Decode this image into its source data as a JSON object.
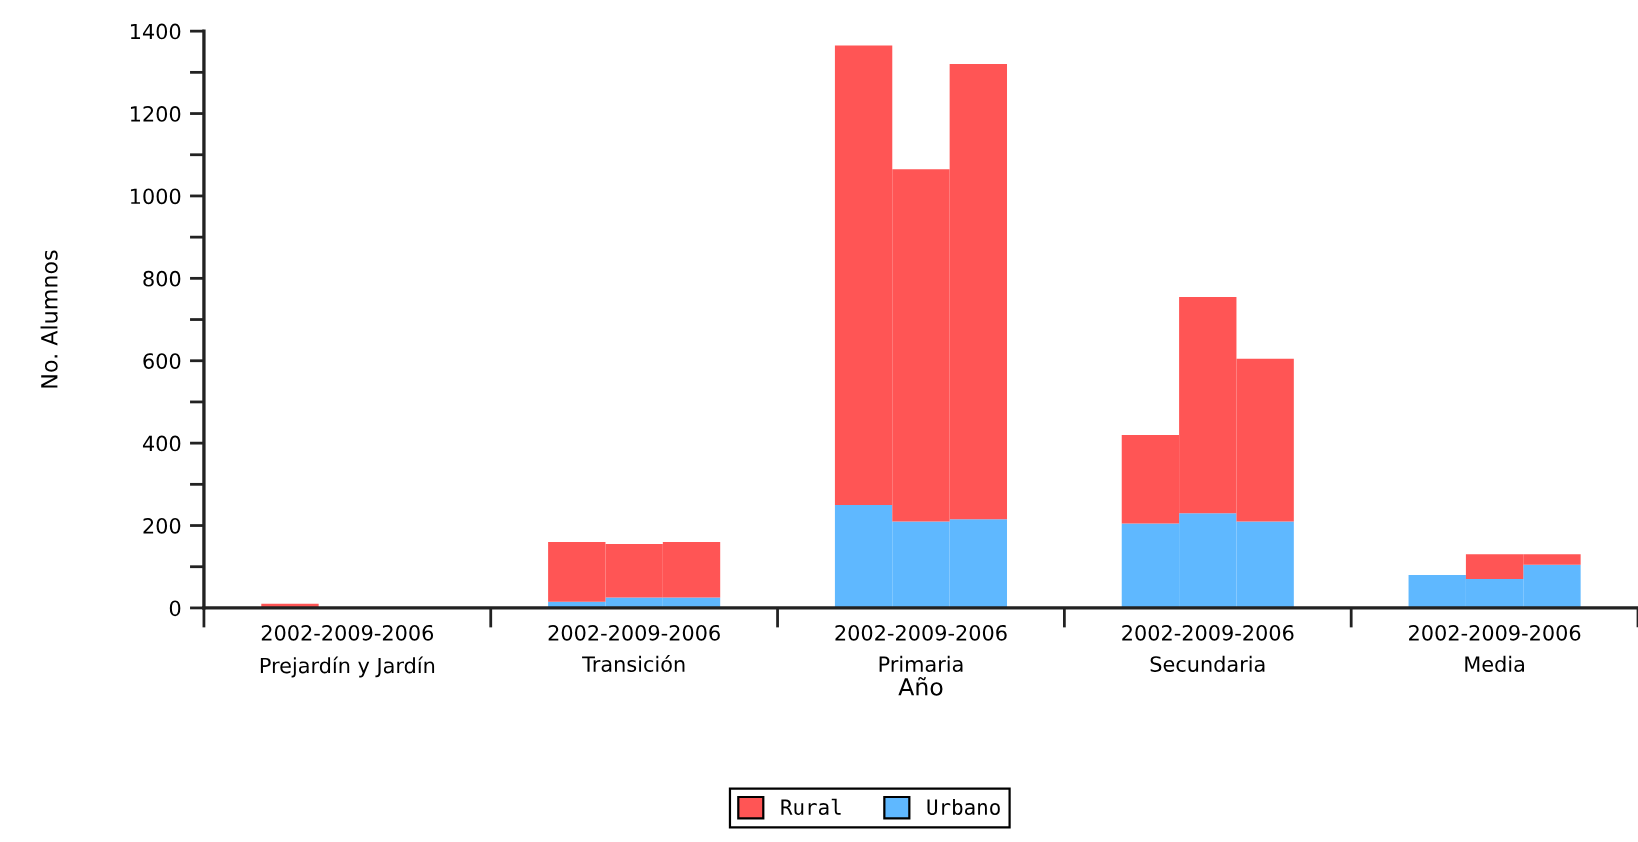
{
  "chart_data": {
    "type": "bar",
    "stacked": true,
    "xlabel": "Año",
    "ylabel": "No. Alumnos",
    "categories": [
      null,
      null,
      "2002-2009-2006\nPrejardín y Jardín",
      null,
      null,
      null,
      null,
      "2002-2009-2006\nTransición",
      null,
      null,
      null,
      null,
      "2002-2009-2006\nPrimaria",
      null,
      null,
      null,
      null,
      "2002-2009-2006\nSecundaria",
      null,
      null,
      null,
      null,
      "2002-2009-2006\nMedia",
      null,
      null
    ],
    "series": [
      {
        "name": "Urbano",
        "color": "#5fb8ff",
        "values": [
          null,
          null,
          null,
          null,
          null,
          null,
          15,
          25,
          25,
          null,
          null,
          250,
          210,
          215,
          null,
          null,
          205,
          230,
          210,
          null,
          null,
          80,
          70,
          105,
          null
        ]
      },
      {
        "name": "Rural",
        "color": "#ff5555",
        "values": [
          null,
          10,
          null,
          null,
          null,
          null,
          145,
          130,
          135,
          null,
          null,
          1115,
          855,
          1105,
          null,
          null,
          215,
          525,
          395,
          null,
          null,
          null,
          60,
          25,
          null
        ]
      }
    ],
    "ylim": [
      0,
      1400
    ],
    "yticks": [
      0,
      {
        "value": 100,
        "label": null
      },
      200,
      {
        "value": 300,
        "label": null
      },
      400,
      {
        "value": 500,
        "label": null
      },
      600,
      {
        "value": 700,
        "label": null
      },
      800,
      {
        "value": 900,
        "label": null
      },
      1000,
      {
        "value": 1100,
        "label": null
      },
      1200,
      {
        "value": 1300,
        "label": null
      },
      1400
    ],
    "legend": "bottom"
  }
}
